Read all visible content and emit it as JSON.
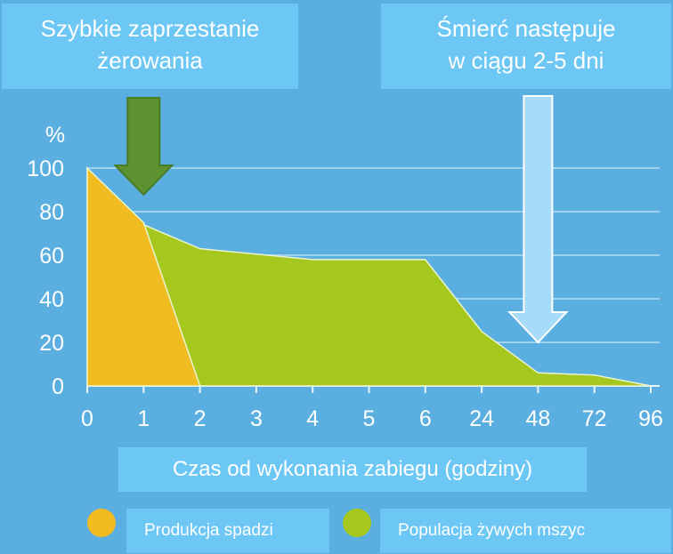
{
  "callouts": {
    "left": [
      "Szybkie zaprzestanie",
      "żerowania"
    ],
    "right": [
      "Śmierć następuje",
      "w ciągu 2-5 dni"
    ]
  },
  "legend": {
    "items": [
      {
        "label": "Produkcja spadzi",
        "color": "#f1bc22"
      },
      {
        "label": "Populacja żywych mszyc",
        "color": "#a6c81e"
      }
    ]
  },
  "chart_data": {
    "type": "area",
    "title": "",
    "xlabel": "Czas od wykonania zabiegu (godziny)",
    "ylabel": "%",
    "ylim": [
      0,
      100
    ],
    "yticks": [
      0,
      20,
      40,
      60,
      80,
      100
    ],
    "categories": [
      "0",
      "1",
      "2",
      "3",
      "4",
      "5",
      "6",
      "24",
      "48",
      "72",
      "96"
    ],
    "grid": true,
    "series": [
      {
        "name": "Populacja żywych mszyc",
        "color": "#a6c81e",
        "points": [
          [
            0,
            100
          ],
          [
            1,
            74
          ],
          [
            2,
            63
          ],
          [
            4,
            58
          ],
          [
            6,
            58
          ],
          [
            24,
            25
          ],
          [
            48,
            6
          ],
          [
            72,
            5
          ],
          [
            96,
            0
          ]
        ]
      },
      {
        "name": "Produkcja spadzi",
        "color": "#f1bc22",
        "points": [
          [
            0,
            100
          ],
          [
            1,
            75
          ],
          [
            2,
            0
          ]
        ]
      }
    ],
    "arrows": [
      {
        "at_x": "1",
        "color": "#5d9230"
      },
      {
        "at_x": "48",
        "color": "#a6dcf7"
      }
    ]
  }
}
